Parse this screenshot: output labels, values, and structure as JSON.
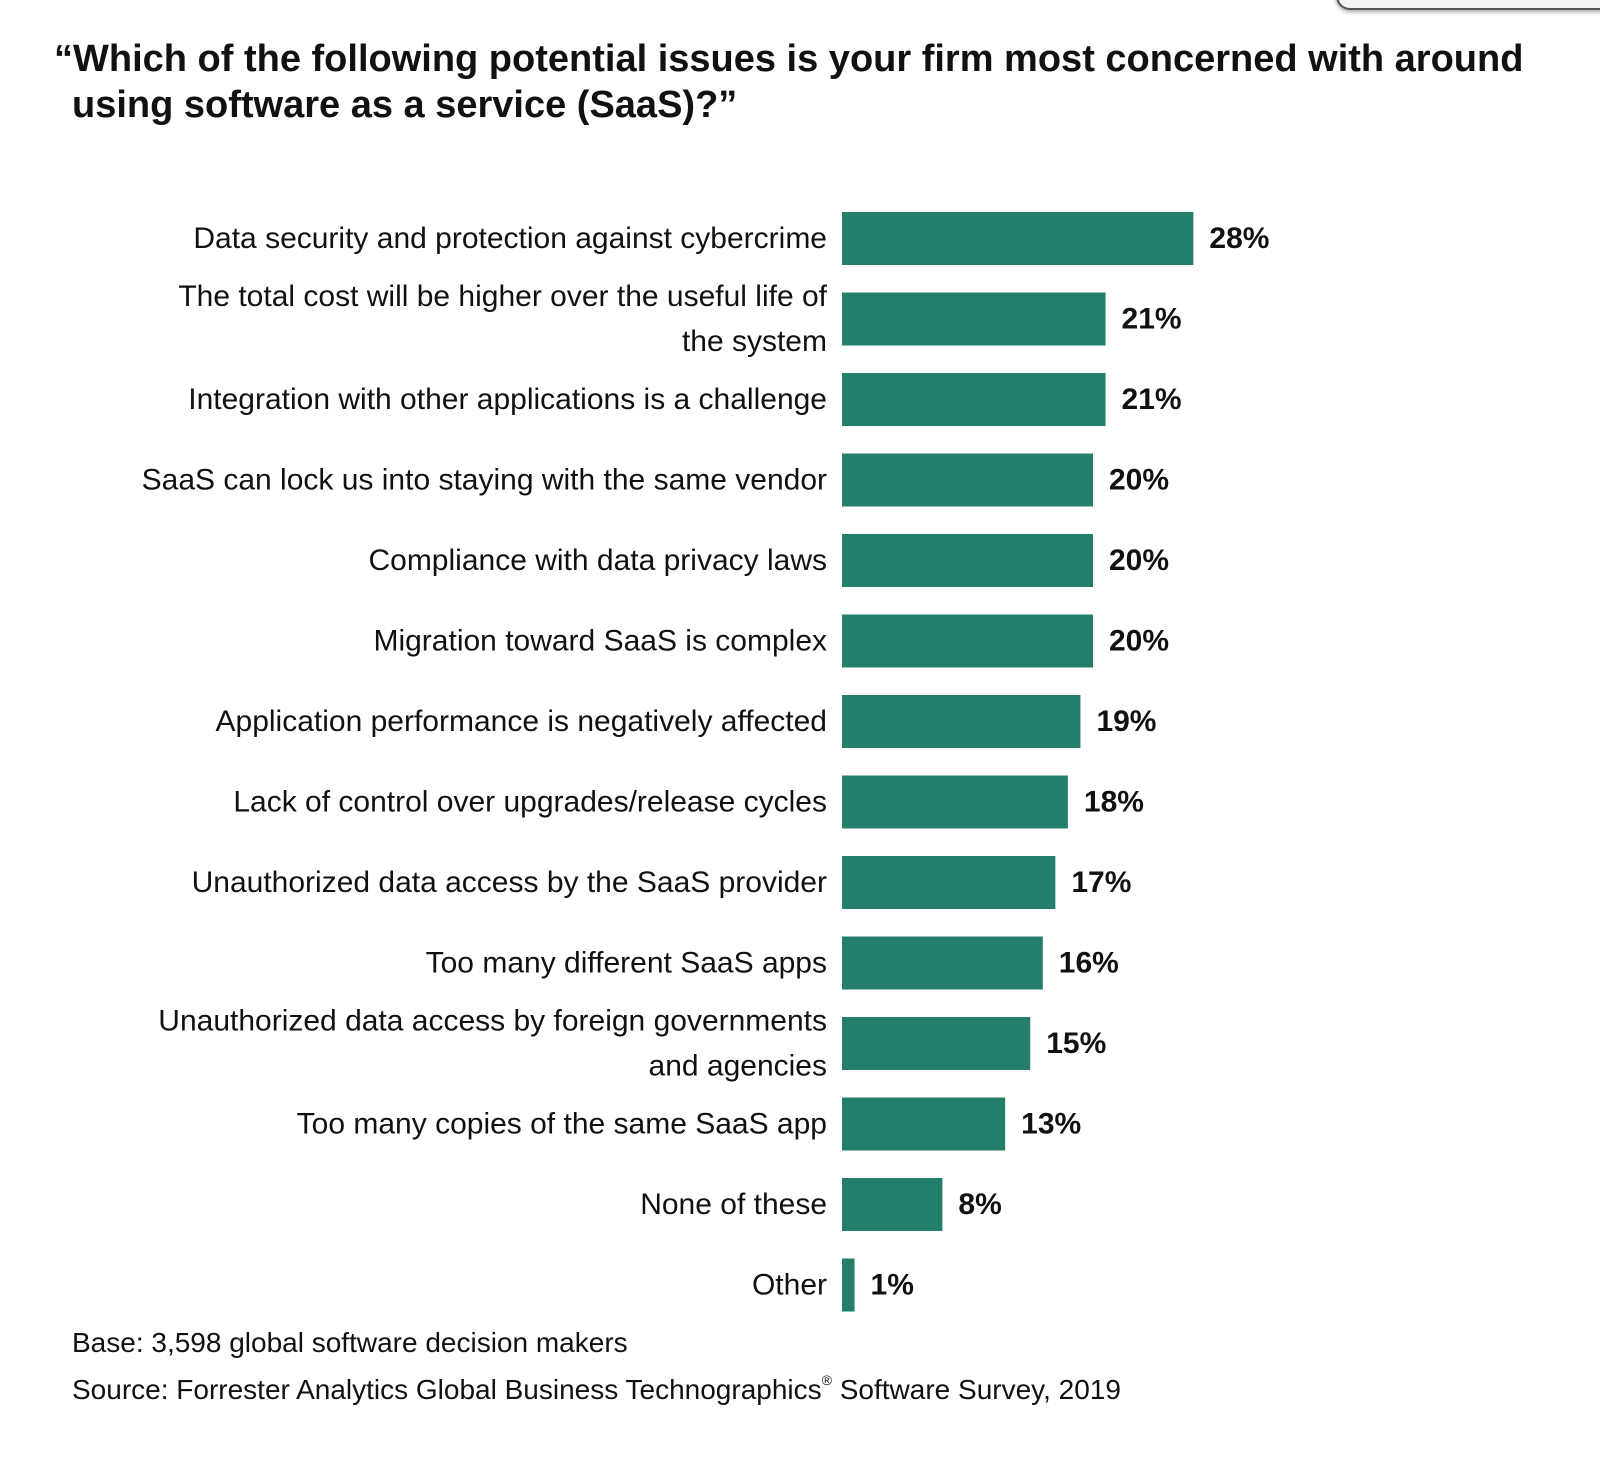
{
  "chart_data": {
    "type": "bar",
    "orientation": "horizontal",
    "title": "“Which of the following potential issues is your firm most concerned with around using software as a service (SaaS)?”",
    "categories": [
      [
        "Data security and protection against cybercrime"
      ],
      [
        "The total cost will be higher over the useful life of",
        "the system"
      ],
      [
        "Integration with other applications is a challenge"
      ],
      [
        "SaaS can lock us into staying with the same vendor"
      ],
      [
        "Compliance with data privacy laws"
      ],
      [
        "Migration toward SaaS is complex"
      ],
      [
        "Application performance is negatively affected"
      ],
      [
        "Lack of control over upgrades/release cycles"
      ],
      [
        "Unauthorized data access by the SaaS provider"
      ],
      [
        "Too many different SaaS apps"
      ],
      [
        "Unauthorized data access by foreign governments",
        "and agencies"
      ],
      [
        "Too many copies of the same SaaS app"
      ],
      [
        "None of these"
      ],
      [
        "Other"
      ]
    ],
    "values": [
      28,
      21,
      21,
      20,
      20,
      20,
      19,
      18,
      17,
      16,
      15,
      13,
      8,
      1
    ],
    "value_labels": [
      "28%",
      "21%",
      "21%",
      "20%",
      "20%",
      "20%",
      "19%",
      "18%",
      "17%",
      "16%",
      "15%",
      "13%",
      "8%",
      "1%"
    ],
    "unit": "%",
    "bar_color": "#237F6B",
    "grid": false,
    "legend": "none"
  },
  "footer": {
    "base": "Base: 3,598 global software decision makers",
    "source_prefix": "Source: Forrester Analytics Global Business Technographics",
    "source_mark": "®",
    "source_suffix": " Software Survey, 2019"
  }
}
